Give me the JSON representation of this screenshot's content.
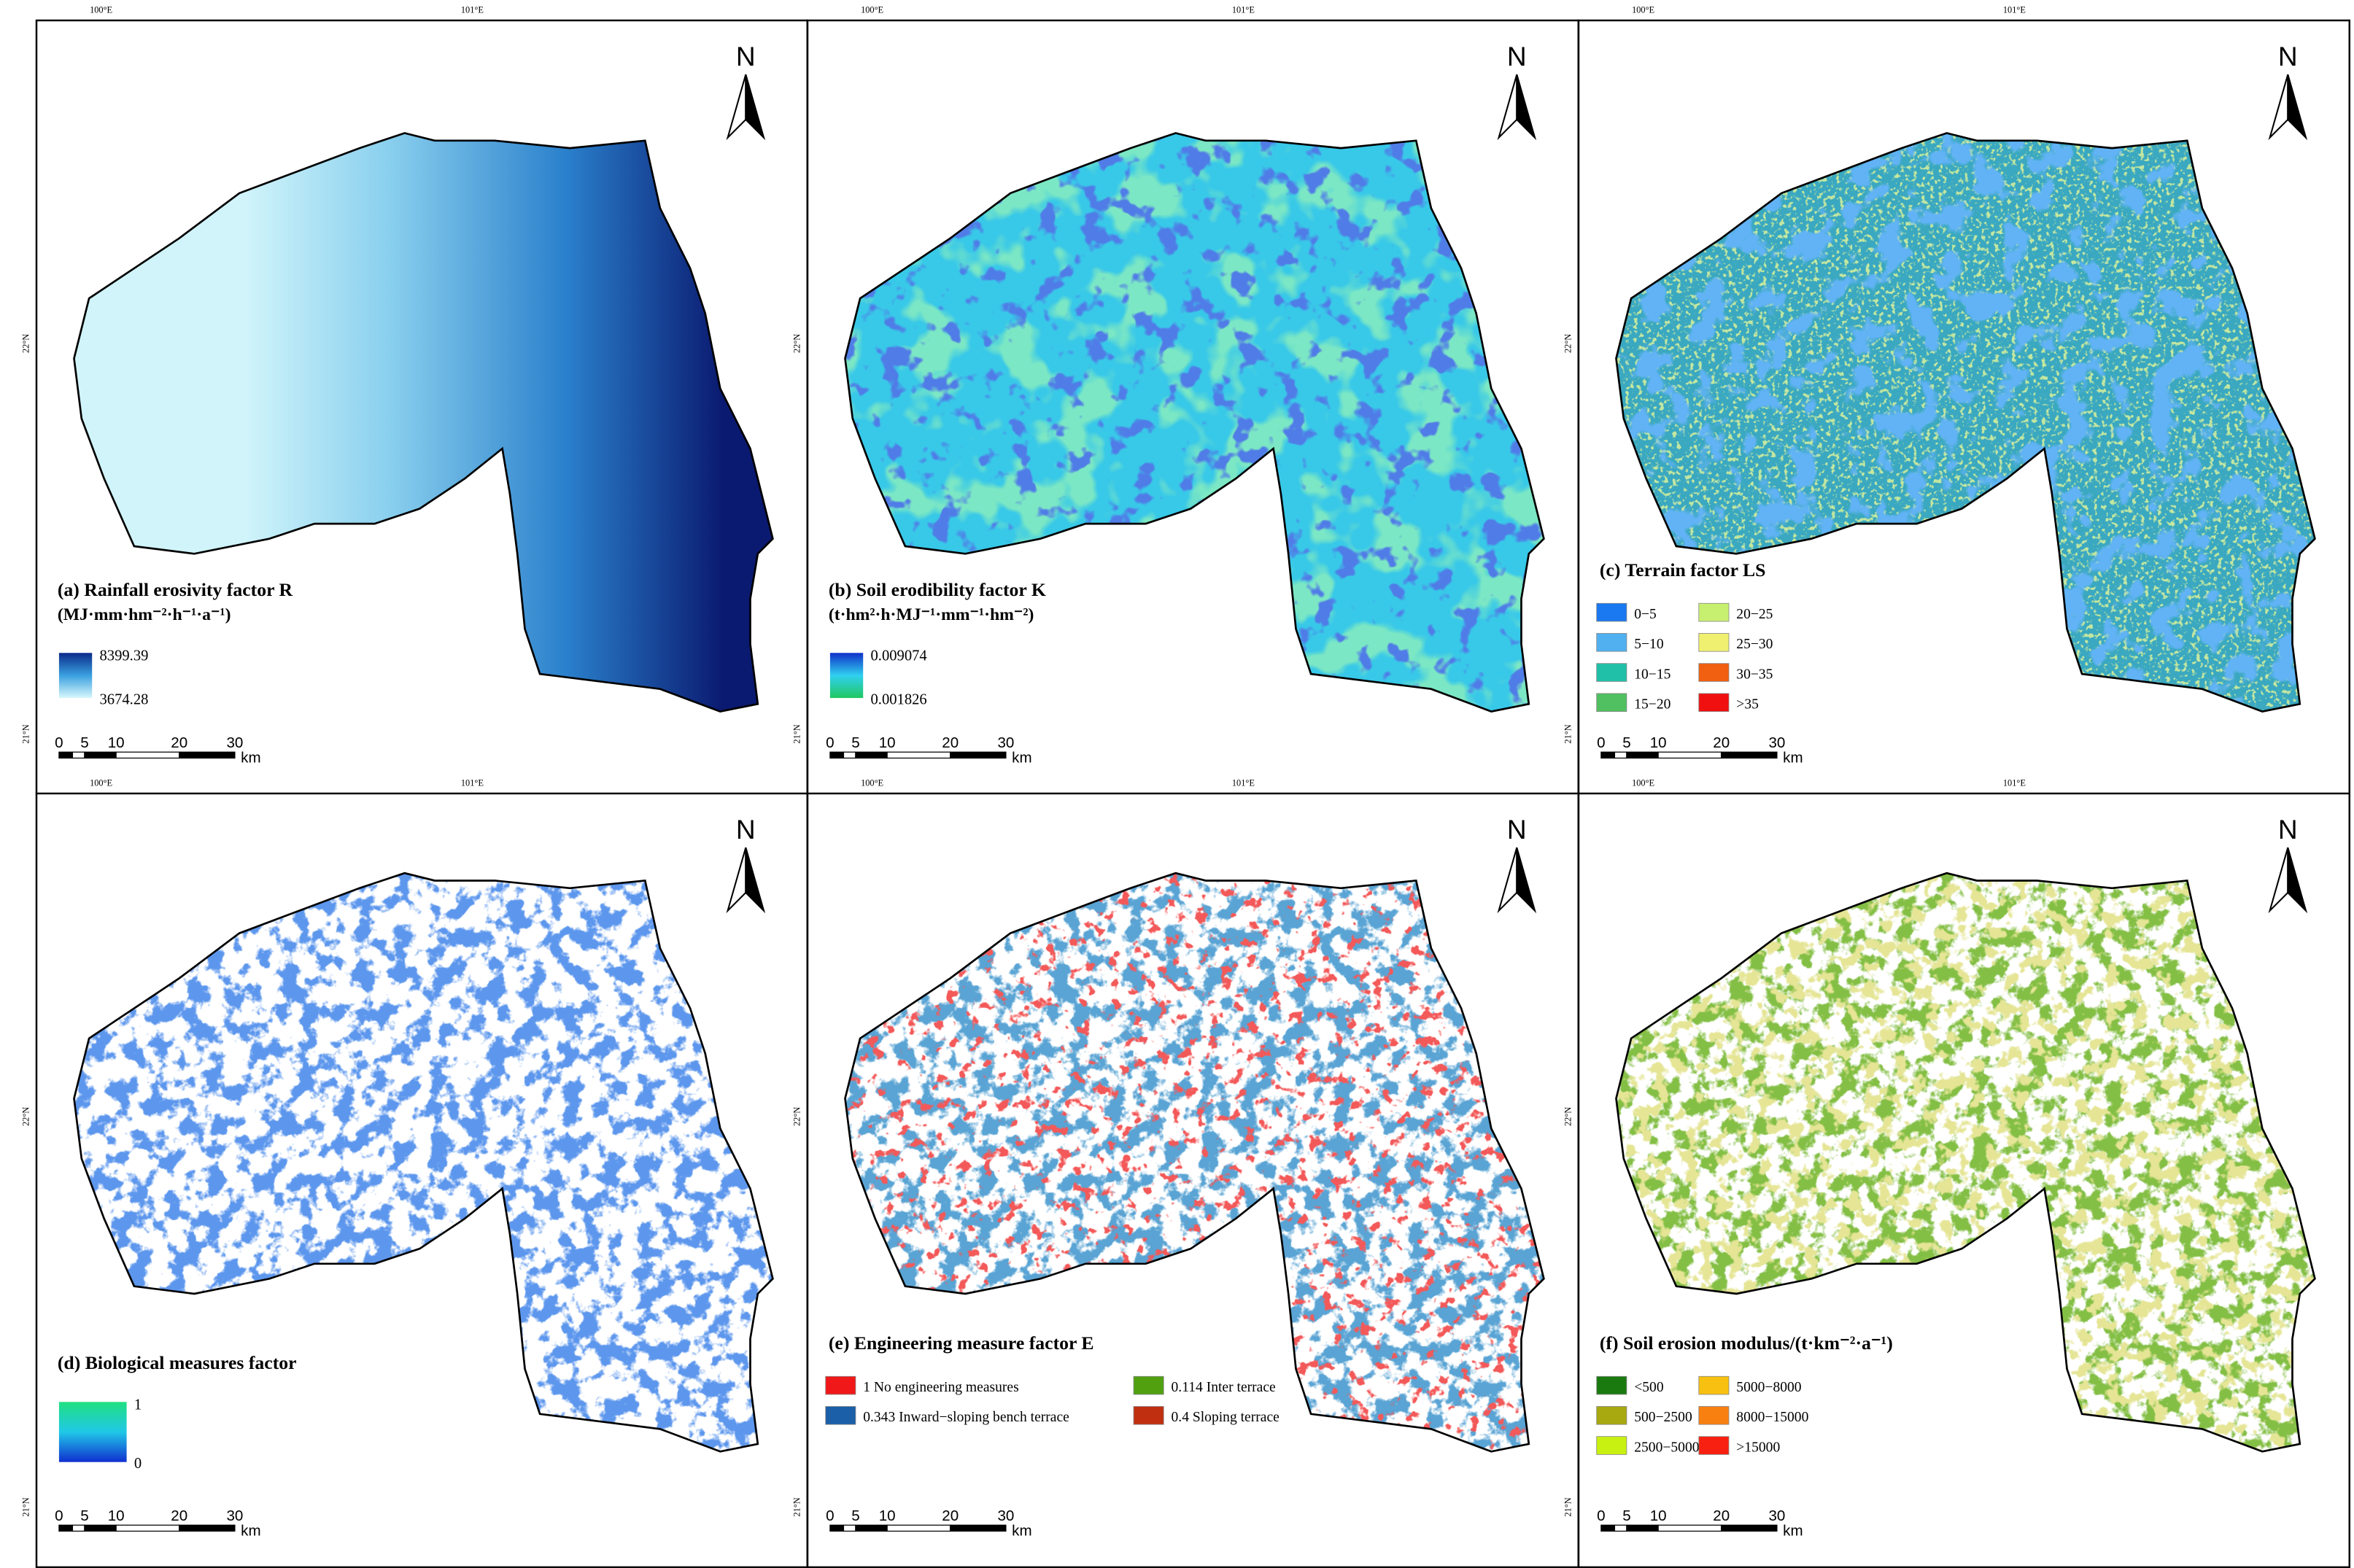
{
  "panels": [
    {
      "title": "(a) Rainfall erosivity  factor  R",
      "unit": "(MJ·mm·hm⁻²·h⁻¹·a⁻¹)",
      "legend": {
        "max": "8399.39",
        "min": "3674.28",
        "colors": [
          "#0b2a8a",
          "#3aa0e0",
          "#d8f8fc"
        ]
      }
    },
    {
      "title": "(b) Soil erodibility  factor  K",
      "unit": "(t·hm²·h·MJ⁻¹·mm⁻¹·hm⁻²)",
      "legend": {
        "max": "0.009074",
        "min": "0.001826",
        "colors": [
          "#1030c8",
          "#30d0f0",
          "#20c860"
        ]
      }
    },
    {
      "title": "(c) Terrain factor LS",
      "legend": {
        "items": [
          {
            "label": "0−5",
            "color": "#1a78f0"
          },
          {
            "label": "5−10",
            "color": "#50b0f0"
          },
          {
            "label": "10−15",
            "color": "#20c0a8"
          },
          {
            "label": "15−20",
            "color": "#50c060"
          },
          {
            "label": "20−25",
            "color": "#c8f070"
          },
          {
            "label": "25−30",
            "color": "#f0f070"
          },
          {
            "label": "30−35",
            "color": "#f06010"
          },
          {
            "label": ">35",
            "color": "#f01010"
          }
        ]
      }
    },
    {
      "title": "(d) Biological measures factor",
      "legend": {
        "max": "1",
        "min": "0",
        "colors": [
          "#20e080",
          "#20c8e8",
          "#1030d0"
        ]
      }
    },
    {
      "title": "(e) Engineering measure factor E",
      "legend": {
        "items": [
          {
            "label": "1 No engineering measures",
            "color": "#f01818"
          },
          {
            "label": "0.343 Inward−sloping bench terrace",
            "color": "#1a5fa8"
          },
          {
            "label": "0.114 Inter terrace",
            "color": "#50a010"
          },
          {
            "label": "0.4 Sloping terrace",
            "color": "#c03010"
          }
        ]
      }
    },
    {
      "title": "(f) Soil erosion modulus/(t·km⁻²·a⁻¹)",
      "legend": {
        "items": [
          {
            "label": "<500",
            "color": "#1a7a10"
          },
          {
            "label": "500−2500",
            "color": "#a8a810"
          },
          {
            "label": "2500−5000",
            "color": "#c8f010"
          },
          {
            "label": "5000−8000",
            "color": "#f8c010"
          },
          {
            "label": "8000−15000",
            "color": "#f88010"
          },
          {
            "label": ">15000",
            "color": "#f82010"
          }
        ]
      }
    }
  ],
  "north": "N",
  "graticule": {
    "lon": [
      "100°E",
      "101°E"
    ],
    "lat": [
      "22°N",
      "21°N"
    ]
  },
  "scale_bar": {
    "ticks": [
      "0",
      "5",
      "10",
      "20",
      "30"
    ],
    "unit": "km"
  }
}
